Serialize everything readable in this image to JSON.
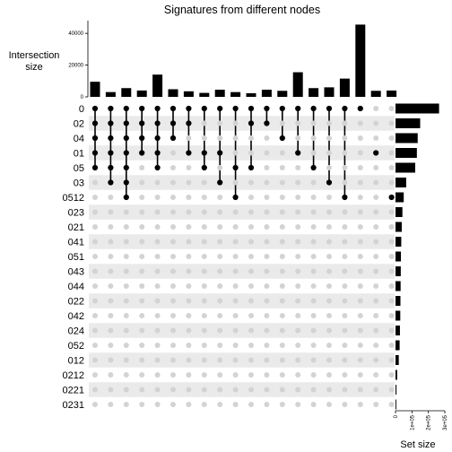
{
  "chart_data": {
    "type": "upset",
    "title": "Signatures from different nodes",
    "intersection_axis": {
      "label_line1": "Intersection",
      "label_line2": "size",
      "ticks": [
        0,
        20000,
        40000
      ],
      "tick_labels": [
        "0",
        "20000",
        "40000"
      ],
      "ylim": [
        0,
        48000
      ]
    },
    "set_size_axis": {
      "label": "Set size",
      "ticks": [
        0,
        100000,
        200000,
        300000
      ],
      "tick_labels": [
        "0",
        "1e+05",
        "2e+05",
        "3e+05"
      ],
      "xlim": [
        0,
        300000
      ]
    },
    "sets": [
      "0",
      "02",
      "04",
      "01",
      "05",
      "03",
      "0512",
      "023",
      "021",
      "041",
      "051",
      "043",
      "044",
      "022",
      "042",
      "024",
      "052",
      "012",
      "0212",
      "0221",
      "0231"
    ],
    "set_sizes": [
      265000,
      150000,
      135000,
      130000,
      120000,
      65000,
      50000,
      42000,
      38000,
      35000,
      33000,
      32000,
      31000,
      30000,
      29000,
      27000,
      25000,
      20000,
      10000,
      6000,
      5000
    ],
    "intersections": [
      {
        "members": [
          "0",
          "02",
          "04",
          "01",
          "05"
        ],
        "size": 9500
      },
      {
        "members": [
          "0",
          "02",
          "04",
          "01",
          "05",
          "03"
        ],
        "size": 3000
      },
      {
        "members": [
          "0",
          "02",
          "04",
          "01",
          "05",
          "03",
          "0512"
        ],
        "size": 5500
      },
      {
        "members": [
          "0",
          "02",
          "04",
          "01"
        ],
        "size": 4000
      },
      {
        "members": [
          "0",
          "02",
          "04",
          "01",
          "05"
        ],
        "size": 14000
      },
      {
        "members": [
          "0",
          "02",
          "04"
        ],
        "size": 4800
      },
      {
        "members": [
          "0",
          "02",
          "01"
        ],
        "size": 3500
      },
      {
        "members": [
          "0",
          "01",
          "05"
        ],
        "size": 2500
      },
      {
        "members": [
          "0",
          "01",
          "03"
        ],
        "size": 4500
      },
      {
        "members": [
          "0",
          "05",
          "0512"
        ],
        "size": 3000
      },
      {
        "members": [
          "0",
          "02",
          "05"
        ],
        "size": 2300
      },
      {
        "members": [
          "0",
          "02"
        ],
        "size": 4500
      },
      {
        "members": [
          "0",
          "04"
        ],
        "size": 3800
      },
      {
        "members": [
          "0",
          "01"
        ],
        "size": 15500
      },
      {
        "members": [
          "0",
          "05"
        ],
        "size": 5500
      },
      {
        "members": [
          "0",
          "03"
        ],
        "size": 6000
      },
      {
        "members": [
          "0",
          "0512"
        ],
        "size": 11500
      },
      {
        "members": [
          "0"
        ],
        "size": 45500
      },
      {
        "members": [
          "01"
        ],
        "size": 3800
      },
      {
        "members": [
          "0512"
        ],
        "size": 4000
      }
    ],
    "colors": {
      "bar": "#000000",
      "active_dot": "#000000",
      "inactive_dot": "#d3d3d3",
      "stripe": "#eaeaea"
    }
  }
}
